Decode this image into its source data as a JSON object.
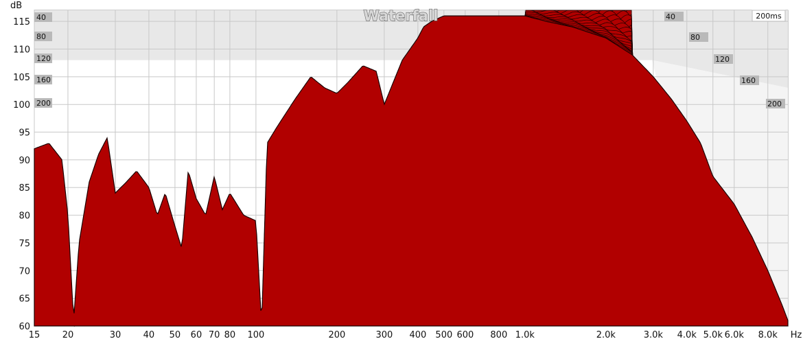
{
  "chart_data": {
    "type": "area",
    "title": "Waterfall",
    "time_window_label": "200ms",
    "xlabel": "Hz",
    "ylabel": "dB",
    "xscale": "log",
    "xlim": [
      15,
      9500
    ],
    "ylim": [
      60,
      117
    ],
    "x_ticks": [
      {
        "v": 15,
        "label": "15"
      },
      {
        "v": 20,
        "label": "20"
      },
      {
        "v": 30,
        "label": "30"
      },
      {
        "v": 40,
        "label": "40"
      },
      {
        "v": 50,
        "label": "50"
      },
      {
        "v": 60,
        "label": "60"
      },
      {
        "v": 70,
        "label": "70"
      },
      {
        "v": 80,
        "label": "80"
      },
      {
        "v": 100,
        "label": "100"
      },
      {
        "v": 200,
        "label": "200"
      },
      {
        "v": 300,
        "label": "300"
      },
      {
        "v": 400,
        "label": "400"
      },
      {
        "v": 500,
        "label": "500"
      },
      {
        "v": 600,
        "label": "600"
      },
      {
        "v": 800,
        "label": "800"
      },
      {
        "v": 1000,
        "label": "1.0k"
      },
      {
        "v": 2000,
        "label": "2.0k"
      },
      {
        "v": 3000,
        "label": "3.0k"
      },
      {
        "v": 4000,
        "label": "4.0k"
      },
      {
        "v": 5000,
        "label": "5.0k"
      },
      {
        "v": 6000,
        "label": "6.0k"
      },
      {
        "v": 8000,
        "label": "8.0k"
      }
    ],
    "y_ticks": [
      60,
      65,
      70,
      75,
      80,
      85,
      90,
      95,
      100,
      105,
      110,
      115
    ],
    "time_ticks_ms": [
      "40",
      "80",
      "120",
      "160",
      "200"
    ],
    "slices": 40,
    "series": [
      {
        "time_ms": 0,
        "x": [
          15,
          17,
          19,
          20,
          21,
          22,
          24,
          26,
          28,
          30,
          33,
          36,
          40,
          43,
          46,
          50,
          53,
          56,
          60,
          65,
          70,
          75,
          80,
          90,
          100,
          105,
          110,
          120,
          140,
          160,
          180,
          200,
          220,
          250,
          280,
          300,
          350,
          400,
          420,
          450,
          500,
          550,
          600,
          700,
          800,
          900,
          1000,
          1200,
          1500,
          2000,
          2500,
          3000,
          3500,
          4000,
          4500,
          5000,
          6000,
          7000,
          8000,
          9000,
          9500
        ],
        "y": [
          92,
          93,
          90,
          80,
          61,
          75,
          86,
          91,
          94,
          84,
          86,
          88,
          85,
          80,
          84,
          78,
          74,
          88,
          83,
          80,
          87,
          81,
          84,
          80,
          79,
          60,
          93,
          96,
          101,
          105,
          103,
          102,
          104,
          107,
          106,
          100,
          108,
          112,
          114,
          115,
          116,
          116,
          116,
          116,
          116,
          116,
          116,
          115,
          114,
          112,
          109,
          105,
          101,
          97,
          93,
          87,
          82,
          76,
          70,
          64,
          61
        ]
      }
    ],
    "colors": {
      "fill": "#b10000",
      "line": "#1a0000",
      "back_wall": "#e8e8e8",
      "grid": "#c8c8c8"
    }
  }
}
